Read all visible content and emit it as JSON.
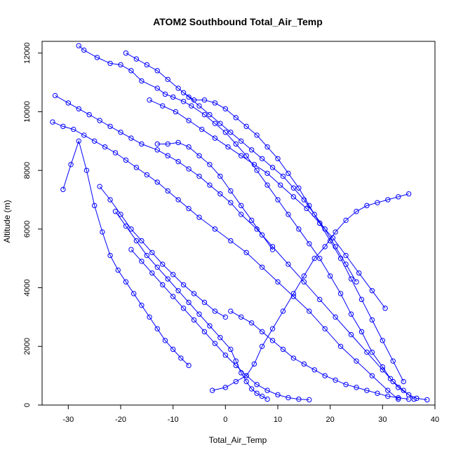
{
  "chart_data": {
    "type": "line",
    "markers": "open-circle",
    "title": "ATOM2 Southbound Total_Air_Temp",
    "xlabel": "Total_Air_Temp",
    "ylabel": "Altitude (m)",
    "xlim": [
      -35,
      40
    ],
    "ylim": [
      0,
      12400
    ],
    "x_ticks": [
      -30,
      -20,
      -10,
      0,
      10,
      20,
      30,
      40
    ],
    "y_ticks": [
      0,
      2000,
      4000,
      6000,
      8000,
      10000,
      12000
    ],
    "series": [
      {
        "x": [
          -28,
          -27,
          -24.5,
          -22,
          -20,
          -18,
          -16,
          -13,
          -11.5,
          -10,
          -8,
          -6.5,
          -4,
          -2,
          0,
          2,
          4,
          6,
          8,
          10,
          12,
          14,
          16,
          18,
          20,
          22,
          24,
          26,
          28,
          30,
          31.5,
          33,
          35,
          36.5,
          38.5
        ],
        "y": [
          12250,
          12100,
          11850,
          11650,
          11600,
          11400,
          11050,
          10800,
          10600,
          10500,
          10350,
          10200,
          9900,
          9600,
          9300,
          8900,
          8500,
          8000,
          7500,
          7000,
          6500,
          6000,
          5500,
          5000,
          4400,
          3800,
          3100,
          2500,
          1800,
          1300,
          900,
          600,
          350,
          230,
          180
        ]
      },
      {
        "x": [
          -32.5,
          -30,
          -28,
          -26,
          -24,
          -22,
          -20,
          -18,
          -16,
          -13,
          -11,
          -9,
          -7,
          -5,
          -3,
          -1,
          1,
          3,
          6,
          9,
          12,
          15,
          18,
          21,
          24,
          27,
          30,
          32,
          34,
          36
        ],
        "y": [
          10550,
          10300,
          10100,
          9900,
          9700,
          9500,
          9300,
          9100,
          8900,
          8700,
          8500,
          8300,
          8050,
          7800,
          7500,
          7200,
          6900,
          6500,
          6000,
          5400,
          4800,
          4200,
          3600,
          3000,
          2400,
          1800,
          1200,
          800,
          500,
          200
        ]
      },
      {
        "x": [
          -33,
          -31,
          -29,
          -27,
          -25,
          -23,
          -21,
          -19,
          -17,
          -15,
          -13,
          -11,
          -9,
          -7,
          -5,
          -2,
          1,
          4,
          7,
          10,
          13,
          16,
          19,
          22,
          25,
          28,
          31,
          33
        ],
        "y": [
          9650,
          9500,
          9400,
          9200,
          9000,
          8800,
          8600,
          8350,
          8100,
          7850,
          7600,
          7300,
          7000,
          6700,
          6400,
          6000,
          5600,
          5200,
          4700,
          4200,
          3700,
          3200,
          2600,
          2000,
          1500,
          1000,
          500,
          200
        ]
      },
      {
        "x": [
          -31,
          -29.5,
          -28,
          -26.5,
          -25,
          -23.5,
          -22,
          -20.5,
          -19,
          -17.5,
          -16,
          -14.5,
          -13,
          -11.5,
          -10,
          -8.5,
          -7
        ],
        "y": [
          7350,
          8200,
          9000,
          8000,
          6800,
          5900,
          5100,
          4600,
          4200,
          3800,
          3400,
          3000,
          2600,
          2200,
          1900,
          1600,
          1350
        ]
      },
      {
        "x": [
          -13,
          -11,
          -9,
          -7,
          -5,
          -3,
          -1,
          1,
          3,
          5,
          7,
          9
        ],
        "y": [
          8900,
          8900,
          8950,
          8800,
          8500,
          8200,
          7800,
          7300,
          6800,
          6300,
          5800,
          5300
        ]
      },
      {
        "x": [
          -21,
          -19,
          -17,
          -15,
          -13,
          -11,
          -9,
          -7,
          -5,
          -3,
          -1,
          1,
          2,
          3,
          4,
          5,
          6,
          7,
          8
        ],
        "y": [
          6600,
          6100,
          5600,
          5100,
          4700,
          4300,
          3900,
          3500,
          3100,
          2700,
          2300,
          1900,
          1500,
          1100,
          800,
          550,
          400,
          300,
          200
        ]
      },
      {
        "x": [
          -18,
          -16,
          -14,
          -12,
          -10,
          -8,
          -6,
          -4,
          -2,
          0,
          2,
          4,
          6,
          8,
          10,
          12,
          14,
          16
        ],
        "y": [
          5300,
          4900,
          4500,
          4100,
          3700,
          3300,
          2900,
          2500,
          2100,
          1700,
          1350,
          1000,
          700,
          500,
          350,
          250,
          200,
          180
        ]
      },
      {
        "x": [
          -2.5,
          0,
          2,
          4,
          5.5,
          7,
          9,
          11,
          13,
          15,
          17,
          19,
          21,
          23,
          25,
          27,
          29,
          31,
          33,
          35
        ],
        "y": [
          500,
          600,
          800,
          1000,
          1400,
          2000,
          2600,
          3200,
          3800,
          4400,
          5000,
          5400,
          5900,
          6300,
          6600,
          6800,
          6900,
          7000,
          7100,
          7200
        ]
      },
      {
        "x": [
          -19,
          -17,
          -15,
          -13,
          -11,
          -9,
          -7,
          -5,
          -3,
          -1,
          1,
          3,
          5,
          7,
          9,
          11,
          13,
          15,
          17,
          19,
          21,
          23,
          25
        ],
        "y": [
          12000,
          11800,
          11600,
          11400,
          11100,
          10800,
          10500,
          10200,
          9900,
          9600,
          9300,
          9000,
          8700,
          8400,
          8100,
          7800,
          7400,
          7000,
          6500,
          6000,
          5400,
          4800,
          4200
        ]
      },
      {
        "x": [
          -14.5,
          -12,
          -9.5,
          -7,
          -4.5,
          -2,
          0.5,
          3,
          5.5,
          8,
          10.5,
          13,
          15.5,
          18,
          20.5,
          23,
          25.5,
          28,
          30.5
        ],
        "y": [
          10400,
          10200,
          10000,
          9700,
          9400,
          9100,
          8800,
          8500,
          8200,
          7900,
          7500,
          7100,
          6700,
          6200,
          5700,
          5100,
          4500,
          3900,
          3300
        ]
      },
      {
        "x": [
          -8,
          -6,
          -4,
          -2,
          0,
          2,
          4,
          6,
          8,
          10,
          12,
          14,
          16,
          18,
          20,
          22,
          24,
          26,
          28,
          30,
          32,
          34
        ],
        "y": [
          10650,
          10400,
          10400,
          10300,
          10100,
          9800,
          9500,
          9200,
          8800,
          8400,
          7900,
          7400,
          6800,
          6200,
          5600,
          5000,
          4300,
          3600,
          2900,
          2200,
          1500,
          800
        ]
      },
      {
        "x": [
          -24,
          -22,
          -20,
          -18,
          -16,
          -14,
          -12,
          -10,
          -8,
          -6,
          -4,
          -2,
          0
        ],
        "y": [
          7450,
          7000,
          6500,
          6000,
          5600,
          5200,
          4800,
          4450,
          4100,
          3800,
          3500,
          3200,
          3000
        ]
      },
      {
        "x": [
          1,
          3,
          5,
          7,
          9,
          11,
          13,
          15,
          17,
          19,
          21,
          23,
          25,
          27,
          29,
          31,
          33,
          35
        ],
        "y": [
          3200,
          3000,
          2800,
          2500,
          2200,
          1900,
          1600,
          1400,
          1200,
          1000,
          850,
          700,
          600,
          500,
          400,
          300,
          250,
          200
        ]
      }
    ]
  }
}
